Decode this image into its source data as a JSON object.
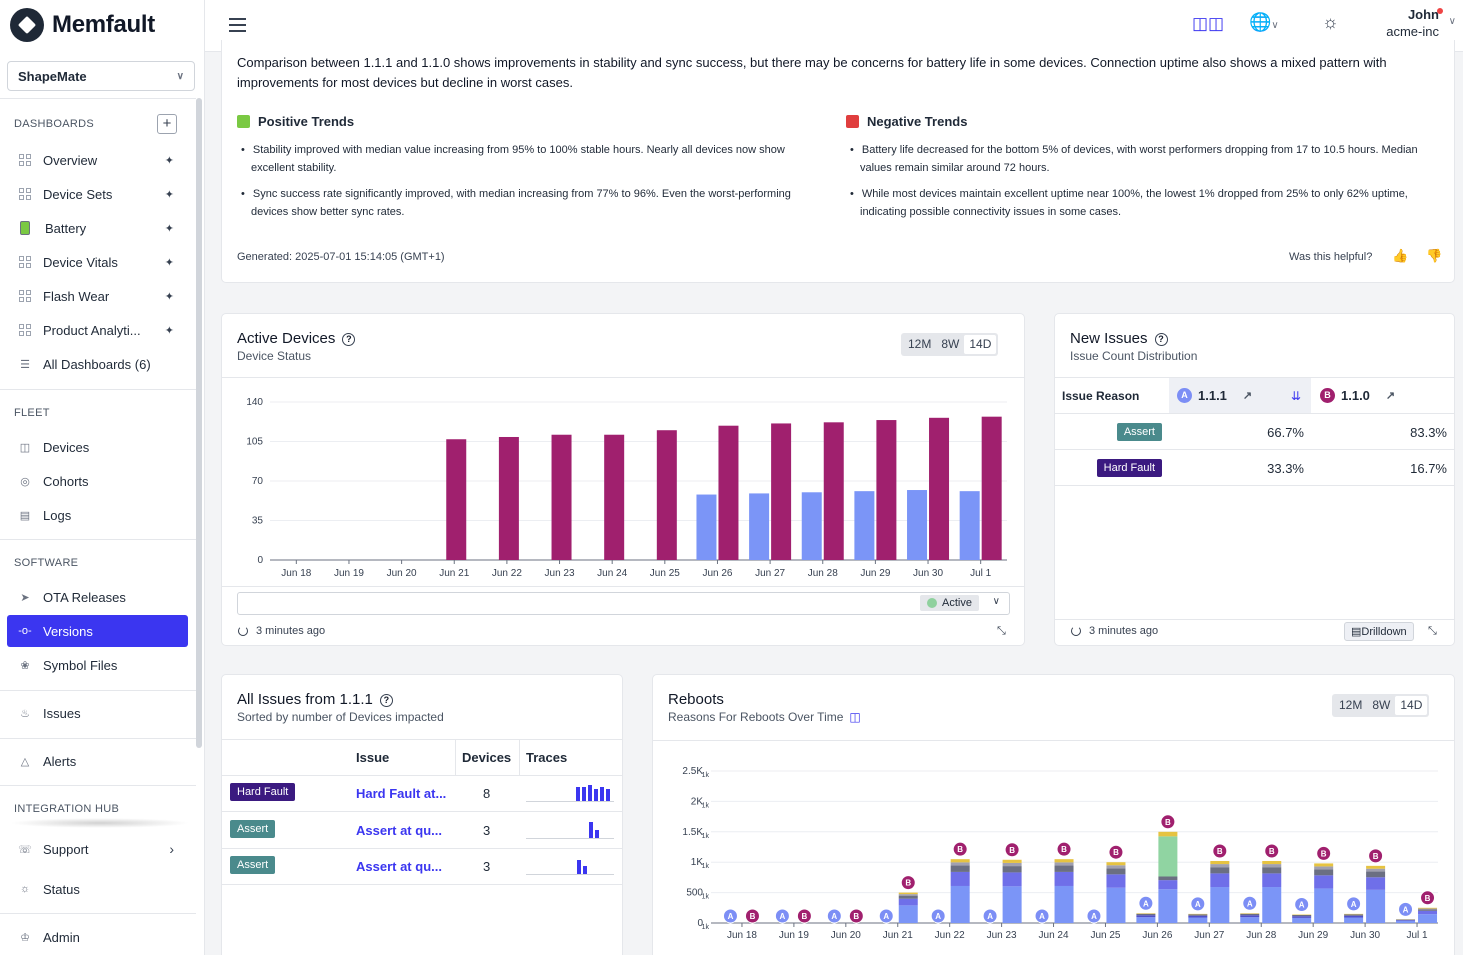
{
  "brand": {
    "name": "Memfault"
  },
  "project": {
    "name": "ShapeMate"
  },
  "sidebar": {
    "dashboards_title": "DASHBOARDS",
    "dashboards": [
      {
        "label": "Overview"
      },
      {
        "label": "Device Sets"
      },
      {
        "label": "Battery"
      },
      {
        "label": "Device Vitals"
      },
      {
        "label": "Flash Wear"
      },
      {
        "label": "Product Analyti..."
      },
      {
        "label": "All Dashboards (6)"
      }
    ],
    "fleet_title": "FLEET",
    "fleet": [
      {
        "label": "Devices"
      },
      {
        "label": "Cohorts"
      },
      {
        "label": "Logs"
      }
    ],
    "software_title": "SOFTWARE",
    "software": [
      {
        "label": "OTA Releases"
      },
      {
        "label": "Versions"
      },
      {
        "label": "Symbol Files"
      }
    ],
    "issues": {
      "label": "Issues"
    },
    "alerts": {
      "label": "Alerts"
    },
    "integration_title": "INTEGRATION HUB",
    "support": {
      "label": "Support"
    },
    "status": {
      "label": "Status"
    },
    "admin": {
      "label": "Admin"
    }
  },
  "header": {
    "user_name": "John",
    "org": "acme-inc"
  },
  "summary": {
    "text": "Comparison between 1.1.1 and 1.1.0 shows improvements in stability and sync success, but there may be concerns for battery life in some devices. Connection uptime also shows a mixed pattern with improvements for most devices but decline in worst cases.",
    "positive_title": "Positive Trends",
    "positive": [
      "Stability improved with median value increasing from 95% to 100% stable hours. Nearly all devices now show excellent stability.",
      "Sync success rate significantly improved, with median increasing from 77% to 96%. Even the worst-performing devices show better sync rates."
    ],
    "negative_title": "Negative Trends",
    "negative": [
      "Battery life decreased for the bottom 5% of devices, with worst performers dropping from 17 to 10.5 hours. Median values remain similar around 72 hours.",
      "While most devices maintain excellent uptime near 100%, the lowest 1% dropped from 25% to only 62% uptime, indicating possible connectivity issues in some cases."
    ],
    "generated": "Generated: 2025-07-01 15:14:05 (GMT+1)",
    "helpful": "Was this helpful?"
  },
  "active_devices": {
    "title": "Active Devices",
    "subtitle": "Device Status",
    "ranges": [
      "12M",
      "8W",
      "14D"
    ],
    "legend": "Active",
    "updated": "3 minutes ago"
  },
  "new_issues": {
    "title": "New Issues",
    "subtitle": "Issue Count Distribution",
    "col_reason": "Issue Reason",
    "col_a": "1.1.1",
    "col_b": "1.1.0",
    "badge_a": "A",
    "badge_b": "B",
    "rows": [
      {
        "reason": "Assert",
        "a": "66.7%",
        "b": "83.3%"
      },
      {
        "reason": "Hard Fault",
        "a": "33.3%",
        "b": "16.7%"
      }
    ],
    "updated": "3 minutes ago",
    "drilldown": "Drilldown"
  },
  "all_issues": {
    "title": "All Issues from 1.1.1",
    "subtitle": "Sorted by number of Devices impacted",
    "col_issue": "Issue",
    "col_devices": "Devices",
    "col_traces": "Traces",
    "rows": [
      {
        "tag": "Hard Fault",
        "issue": "Hard Fault at...",
        "devices": "8"
      },
      {
        "tag": "Assert",
        "issue": "Assert at qu...",
        "devices": "3"
      },
      {
        "tag": "Assert",
        "issue": "Assert at qu...",
        "devices": "3"
      }
    ]
  },
  "reboots": {
    "title": "Reboots",
    "subtitle": "Reasons For Reboots Over Time",
    "ranges": [
      "12M",
      "8W",
      "14D"
    ]
  },
  "chart_data": [
    {
      "type": "bar",
      "title": "Active Devices",
      "categories": [
        "Jun 18",
        "Jun 19",
        "Jun 20",
        "Jun 21",
        "Jun 22",
        "Jun 23",
        "Jun 24",
        "Jun 25",
        "Jun 26",
        "Jun 27",
        "Jun 28",
        "Jun 29",
        "Jun 30",
        "Jul 1"
      ],
      "series": [
        {
          "name": "1.1.0",
          "color": "#a0206e",
          "values": [
            0,
            0,
            0,
            107,
            109,
            111,
            111,
            115,
            119,
            121,
            122,
            124,
            126,
            127
          ]
        },
        {
          "name": "1.1.1",
          "color": "#7b95f7",
          "values": [
            0,
            0,
            0,
            0,
            0,
            0,
            0,
            0,
            58,
            59,
            60,
            61,
            62,
            61
          ]
        }
      ],
      "yticks": [
        0,
        35,
        70,
        105,
        140
      ],
      "ylim": [
        0,
        140
      ]
    },
    {
      "type": "bar",
      "title": "Reboots",
      "stacked": true,
      "categories": [
        "Jun 18",
        "Jun 19",
        "Jun 20",
        "Jun 21",
        "Jun 22",
        "Jun 23",
        "Jun 24",
        "Jun 25",
        "Jun 26",
        "Jun 27",
        "Jun 28",
        "Jun 29",
        "Jun 30",
        "Jul 1"
      ],
      "yticks": [
        "0",
        "500",
        "1K",
        "1.5K",
        "2K",
        "2.5K"
      ],
      "ylim": [
        0,
        2500
      ],
      "series": [
        {
          "name": "1.1.1",
          "color": "#7b95f7",
          "values": [
            0,
            0,
            0,
            0,
            0,
            0,
            0,
            0,
            160,
            150,
            160,
            140,
            150,
            60
          ]
        },
        {
          "name": "1.1.0",
          "color": "#6f6fe9",
          "values": [
            0,
            0,
            0,
            500,
            1050,
            1040,
            1050,
            1000,
            1500,
            1020,
            1020,
            980,
            940,
            250
          ]
        }
      ]
    }
  ]
}
